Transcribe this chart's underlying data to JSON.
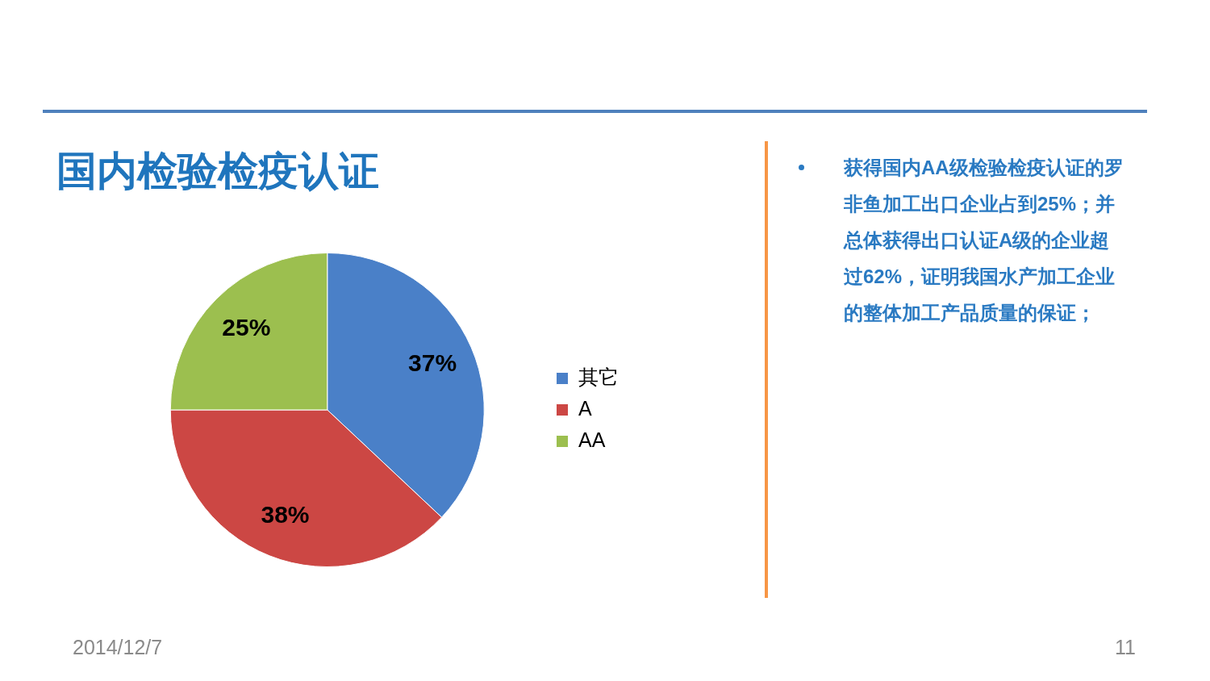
{
  "chart_data": {
    "type": "pie",
    "title": "国内检验检疫认证",
    "categories": [
      "其它",
      "A",
      "AA"
    ],
    "values": [
      37,
      38,
      25
    ],
    "colors": [
      "#4a80c8",
      "#cc4744",
      "#9cbf4f"
    ],
    "value_labels": [
      "37%",
      "38%",
      "25%"
    ],
    "legend": "right",
    "annotations": [
      "获得国内AA级检验检疫认证的罗非鱼加工出口企业占到25%；并总体获得出口认证A级的企业超过62%，证明我国水产加工企业的整体加工产品质量的保证；",
      "2014/12/7",
      "11"
    ]
  }
}
